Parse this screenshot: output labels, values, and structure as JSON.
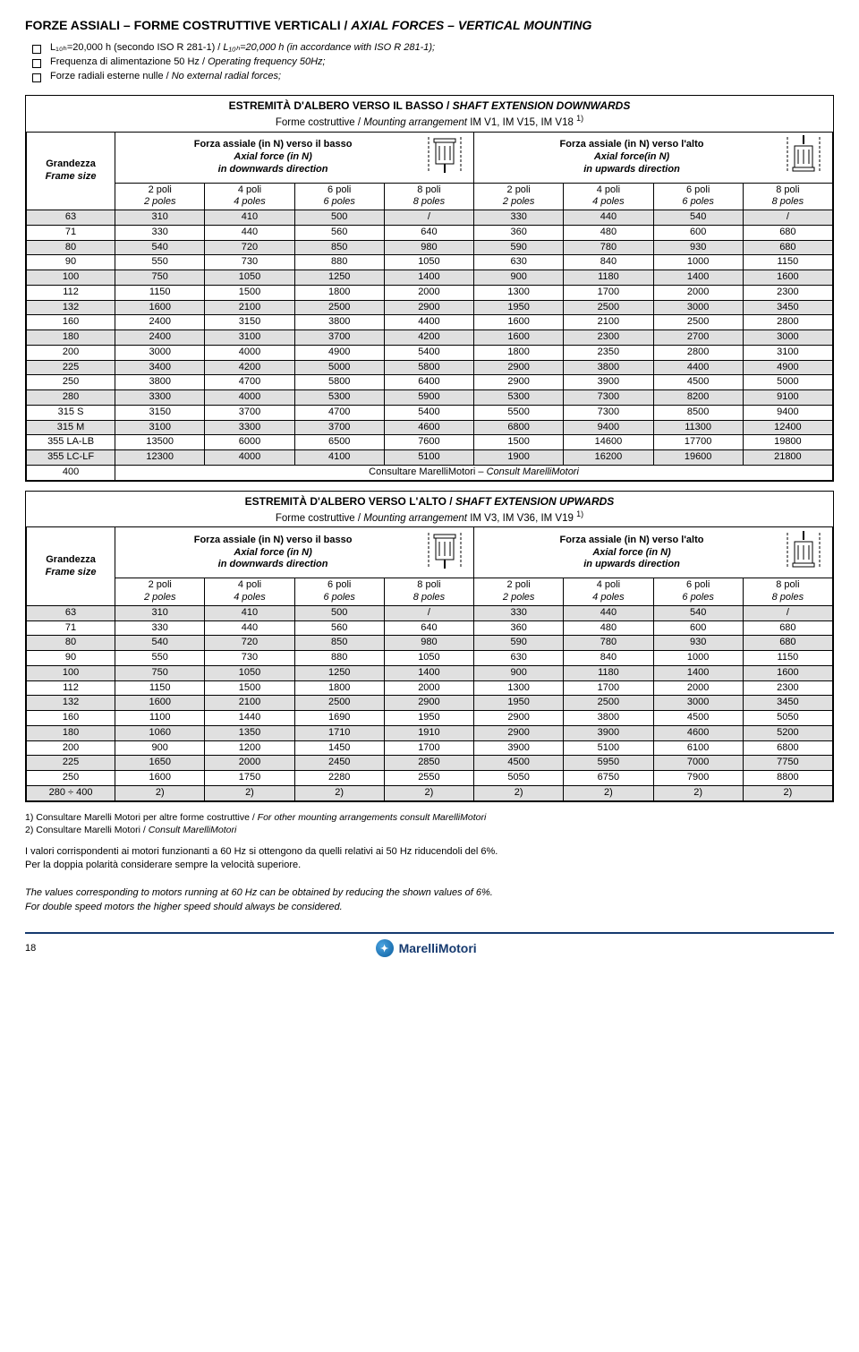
{
  "page_number": "18",
  "page_title_it": "FORZE ASSIALI – FORME COSTRUTTIVE VERTICALI / ",
  "page_title_en": "AXIAL FORCES – VERTICAL MOUNTING",
  "bullets": [
    {
      "it": "L₁₀ₕ=20,000 h (secondo ISO R 281-1) / ",
      "en": "L₁₀ₕ=20,000 h (in accordance with ISO R 281-1);"
    },
    {
      "it": "Frequenza di alimentazione 50 Hz / ",
      "en": "Operating frequency 50Hz;"
    },
    {
      "it": "Forze radiali esterne nulle / ",
      "en": "No external radial forces;"
    }
  ],
  "section1": {
    "header_it": "ESTREMITÀ D'ALBERO VERSO IL BASSO / ",
    "header_en": "SHAFT EXTENSION DOWNWARDS",
    "sub_it": "Forme costruttive / ",
    "sub_en": "Mounting arrangement",
    "sub_after": " IM V1, IM V15, IM V18 ",
    "sup": "1)",
    "frame_it": "Grandezza",
    "frame_en": "Frame size",
    "down_it": "Forza assiale (in N) verso il basso",
    "down_en1": "Axial force (in N)",
    "down_en2": "in downwards direction",
    "up_it": "Forza assiale (in N) verso l'alto",
    "up_en1": "Axial force(in N)",
    "up_en2": "in upwards direction",
    "poli": [
      {
        "it": "2 poli",
        "en": "2 poles"
      },
      {
        "it": "4 poli",
        "en": "4 poles"
      },
      {
        "it": "6 poli",
        "en": "6 poles"
      },
      {
        "it": "8 poli",
        "en": "8 poles"
      },
      {
        "it": "2 poli",
        "en": "2 poles"
      },
      {
        "it": "4 poli",
        "en": "4 poles"
      },
      {
        "it": "6 poli",
        "en": "6 poles"
      },
      {
        "it": "8 poli",
        "en": "8 poles"
      }
    ],
    "rows": [
      {
        "fs": "63",
        "v": [
          "310",
          "410",
          "500",
          "/",
          "330",
          "440",
          "540",
          "/"
        ],
        "shade": true
      },
      {
        "fs": "71",
        "v": [
          "330",
          "440",
          "560",
          "640",
          "360",
          "480",
          "600",
          "680"
        ]
      },
      {
        "fs": "80",
        "v": [
          "540",
          "720",
          "850",
          "980",
          "590",
          "780",
          "930",
          "680"
        ],
        "shade": true
      },
      {
        "fs": "90",
        "v": [
          "550",
          "730",
          "880",
          "1050",
          "630",
          "840",
          "1000",
          "1150"
        ]
      },
      {
        "fs": "100",
        "v": [
          "750",
          "1050",
          "1250",
          "1400",
          "900",
          "1180",
          "1400",
          "1600"
        ],
        "shade": true
      },
      {
        "fs": "112",
        "v": [
          "1150",
          "1500",
          "1800",
          "2000",
          "1300",
          "1700",
          "2000",
          "2300"
        ]
      },
      {
        "fs": "132",
        "v": [
          "1600",
          "2100",
          "2500",
          "2900",
          "1950",
          "2500",
          "3000",
          "3450"
        ],
        "shade": true
      },
      {
        "fs": "160",
        "v": [
          "2400",
          "3150",
          "3800",
          "4400",
          "1600",
          "2100",
          "2500",
          "2800"
        ]
      },
      {
        "fs": "180",
        "v": [
          "2400",
          "3100",
          "3700",
          "4200",
          "1600",
          "2300",
          "2700",
          "3000"
        ],
        "shade": true
      },
      {
        "fs": "200",
        "v": [
          "3000",
          "4000",
          "4900",
          "5400",
          "1800",
          "2350",
          "2800",
          "3100"
        ]
      },
      {
        "fs": "225",
        "v": [
          "3400",
          "4200",
          "5000",
          "5800",
          "2900",
          "3800",
          "4400",
          "4900"
        ],
        "shade": true
      },
      {
        "fs": "250",
        "v": [
          "3800",
          "4700",
          "5800",
          "6400",
          "2900",
          "3900",
          "4500",
          "5000"
        ]
      },
      {
        "fs": "280",
        "v": [
          "3300",
          "4000",
          "5300",
          "5900",
          "5300",
          "7300",
          "8200",
          "9100"
        ],
        "shade": true
      },
      {
        "fs": "315 S",
        "v": [
          "3150",
          "3700",
          "4700",
          "5400",
          "5500",
          "7300",
          "8500",
          "9400"
        ]
      },
      {
        "fs": "315 M",
        "v": [
          "3100",
          "3300",
          "3700",
          "4600",
          "6800",
          "9400",
          "11300",
          "12400"
        ],
        "shade": true
      },
      {
        "fs": "355 LA-LB",
        "v": [
          "13500",
          "6000",
          "6500",
          "7600",
          "1500",
          "14600",
          "17700",
          "19800"
        ]
      },
      {
        "fs": "355 LC-LF",
        "v": [
          "12300",
          "4000",
          "4100",
          "5100",
          "1900",
          "16200",
          "19600",
          "21800"
        ],
        "shade": true
      }
    ],
    "consult_fs": "400",
    "consult_it": "Consultare MarelliMotori – ",
    "consult_en": "Consult MarelliMotori"
  },
  "section2": {
    "header_it": "ESTREMITÀ D'ALBERO VERSO L'ALTO / ",
    "header_en": "SHAFT EXTENSION UPWARDS",
    "sub_it": "Forme costruttive / ",
    "sub_en": "Mounting arrangement",
    "sub_after": " IM V3, IM V36, IM V19 ",
    "sup": "1)",
    "frame_it": "Grandezza",
    "frame_en": "Frame size",
    "down_it": "Forza assiale (in N) verso il basso",
    "down_en1": "Axial force (in N)",
    "down_en2": "in downwards direction",
    "up_it": "Forza assiale (in N) verso l'alto",
    "up_en1": "Axial force (in N)",
    "up_en2": "in upwards direction",
    "poli": [
      {
        "it": "2 poli",
        "en": "2 poles"
      },
      {
        "it": "4 poli",
        "en": "4 poles"
      },
      {
        "it": "6 poli",
        "en": "6 poles"
      },
      {
        "it": "8 poli",
        "en": "8 poles"
      },
      {
        "it": "2 poli",
        "en": "2 poles"
      },
      {
        "it": "4 poli",
        "en": "4 poles"
      },
      {
        "it": "6 poli",
        "en": "6 poles"
      },
      {
        "it": "8 poli",
        "en": "8 poles"
      }
    ],
    "rows": [
      {
        "fs": "63",
        "v": [
          "310",
          "410",
          "500",
          "/",
          "330",
          "440",
          "540",
          "/"
        ],
        "shade": true
      },
      {
        "fs": "71",
        "v": [
          "330",
          "440",
          "560",
          "640",
          "360",
          "480",
          "600",
          "680"
        ]
      },
      {
        "fs": "80",
        "v": [
          "540",
          "720",
          "850",
          "980",
          "590",
          "780",
          "930",
          "680"
        ],
        "shade": true
      },
      {
        "fs": "90",
        "v": [
          "550",
          "730",
          "880",
          "1050",
          "630",
          "840",
          "1000",
          "1150"
        ]
      },
      {
        "fs": "100",
        "v": [
          "750",
          "1050",
          "1250",
          "1400",
          "900",
          "1180",
          "1400",
          "1600"
        ],
        "shade": true
      },
      {
        "fs": "112",
        "v": [
          "1150",
          "1500",
          "1800",
          "2000",
          "1300",
          "1700",
          "2000",
          "2300"
        ]
      },
      {
        "fs": "132",
        "v": [
          "1600",
          "2100",
          "2500",
          "2900",
          "1950",
          "2500",
          "3000",
          "3450"
        ],
        "shade": true
      },
      {
        "fs": "160",
        "v": [
          "1100",
          "1440",
          "1690",
          "1950",
          "2900",
          "3800",
          "4500",
          "5050"
        ]
      },
      {
        "fs": "180",
        "v": [
          "1060",
          "1350",
          "1710",
          "1910",
          "2900",
          "3900",
          "4600",
          "5200"
        ],
        "shade": true
      },
      {
        "fs": "200",
        "v": [
          "900",
          "1200",
          "1450",
          "1700",
          "3900",
          "5100",
          "6100",
          "6800"
        ]
      },
      {
        "fs": "225",
        "v": [
          "1650",
          "2000",
          "2450",
          "2850",
          "4500",
          "5950",
          "7000",
          "7750"
        ],
        "shade": true
      },
      {
        "fs": "250",
        "v": [
          "1600",
          "1750",
          "2280",
          "2550",
          "5050",
          "6750",
          "7900",
          "8800"
        ]
      },
      {
        "fs": "280 ÷ 400",
        "v": [
          "2)",
          "2)",
          "2)",
          "2)",
          "2)",
          "2)",
          "2)",
          "2)"
        ],
        "shade": true
      }
    ]
  },
  "footnotes": [
    {
      "it": "1) Consultare Marelli Motori per altre forme costruttive / ",
      "en": "For other mounting arrangements consult MarelliMotori"
    },
    {
      "it": "2) Consultare Marelli Motori / ",
      "en": "Consult MarelliMotori"
    }
  ],
  "notes": {
    "it1": "I valori corrispondenti ai motori funzionanti a 60 Hz si ottengono da quelli relativi ai 50 Hz riducendoli del 6%.",
    "it2": "Per la doppia polarità considerare sempre la velocità superiore.",
    "en1": "The values corresponding to motors running at 60 Hz can be obtained by reducing the shown values of 6%.",
    "en2": "For double speed motors the higher speed should always be considered."
  },
  "logo_text": "MarelliMotori"
}
